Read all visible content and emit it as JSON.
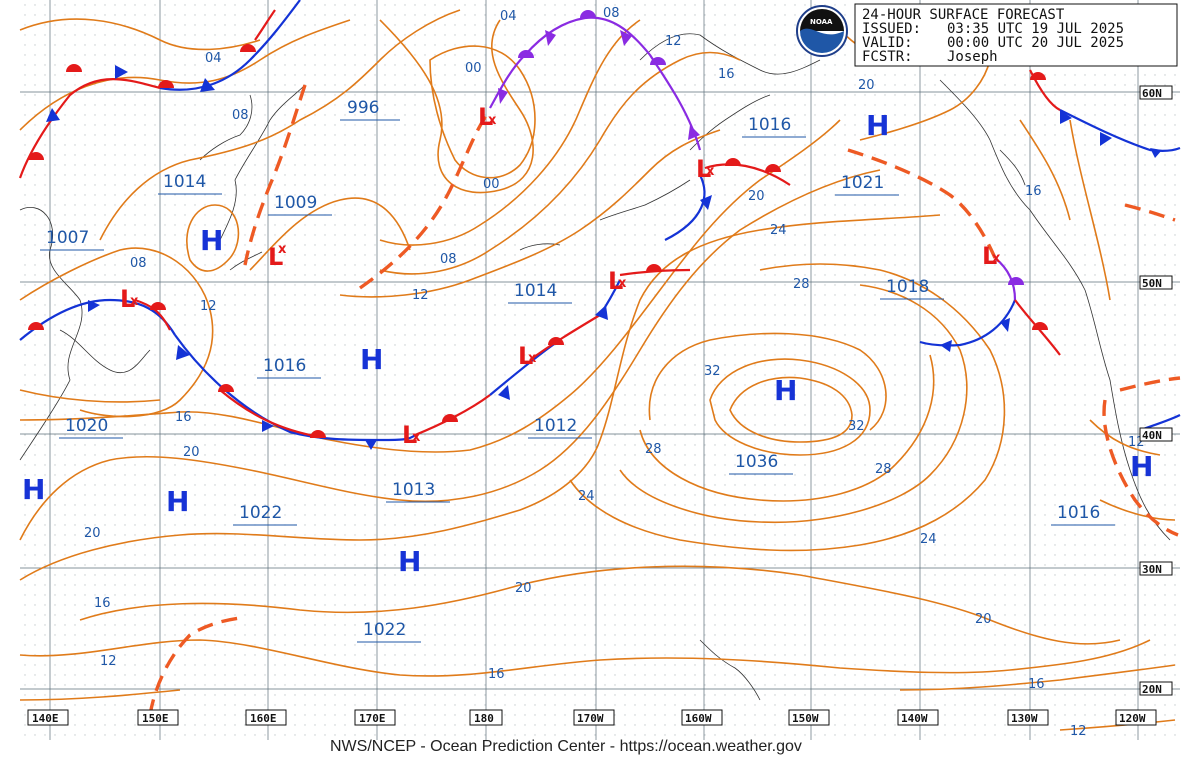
{
  "header": {
    "title": "24-HOUR SURFACE FORECAST",
    "issued_label": "ISSUED:",
    "issued": "03:35 UTC 19 JUL 2025",
    "valid_label": "VALID:",
    "valid": "00:00 UTC 20 JUL 2025",
    "fcstr_label": "FCSTR:",
    "fcstr": "Joseph",
    "logo_text": "NOAA"
  },
  "credit": "NWS/NCEP - Ocean Prediction Center - https://ocean.weather.gov",
  "longitudes": [
    "140E",
    "150E",
    "160E",
    "170E",
    "180",
    "170W",
    "160W",
    "150W",
    "140W",
    "130W",
    "120W"
  ],
  "latitudes": [
    "60N",
    "50N",
    "40N",
    "30N",
    "20N"
  ],
  "centers": {
    "pressure_values": [
      "996",
      "1014",
      "1009",
      "1007",
      "1016",
      "1014",
      "1021",
      "1018",
      "1016",
      "1020",
      "1013",
      "1012",
      "1036",
      "1022",
      "1016",
      "1022"
    ],
    "high_symbol": "H",
    "low_symbol": "L",
    "low_mark": "x"
  },
  "isobar_labels": [
    "04",
    "08",
    "12",
    "16",
    "00",
    "04",
    "08",
    "12",
    "16",
    "20",
    "24",
    "28",
    "32",
    "32",
    "28",
    "24",
    "20",
    "16",
    "12",
    "20",
    "20",
    "16",
    "12",
    "08",
    "12",
    "16",
    "20",
    "24",
    "28",
    "16",
    "20",
    "12",
    "00",
    "08"
  ],
  "colors": {
    "isobar": "#e07b1a",
    "label_text": "#1f57a7",
    "high": "#1733d6",
    "low": "#e41a1a",
    "cold_front": "#1433d6",
    "warm_front": "#e41a1a",
    "occluded_front": "#8a2be2",
    "trough": "#ee5a24"
  }
}
